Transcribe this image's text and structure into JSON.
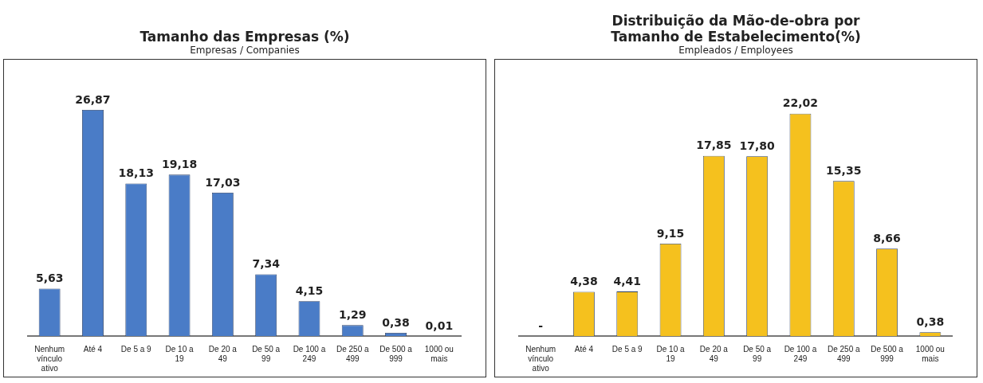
{
  "chart_data": [
    {
      "type": "bar",
      "title": "Tamanho das Empresas (%)",
      "subtitle": "Empresas / Companies",
      "categories": [
        "Nenhum vínculo ativo",
        "Até 4",
        "De 5 a 9",
        "De 10 a 19",
        "De 20 a 49",
        "De 50 a 99",
        "De 100 a 249",
        "De 250 a 499",
        "De 500 a 999",
        "1000 ou mais"
      ],
      "values": [
        5.63,
        26.87,
        18.13,
        19.18,
        17.03,
        7.34,
        4.15,
        1.29,
        0.38,
        0.01
      ],
      "value_labels": [
        "5,63",
        "26,87",
        "18,13",
        "19,18",
        "17,03",
        "7,34",
        "4,15",
        "1,29",
        "0,38",
        "0,01"
      ],
      "color": "#4a7cc7",
      "grid": false,
      "legend": false
    },
    {
      "type": "bar",
      "title": "Distribuição da Mão-de-obra por Tamanho de Estabelecimento(%)",
      "subtitle": "Empleados / Employees",
      "categories": [
        "Nenhum vínculo ativo",
        "Até 4",
        "De 5 a 9",
        "De 10 a 19",
        "De 20 a 49",
        "De 50 a 99",
        "De 100 a 249",
        "De 250 a 499",
        "De 500 a 999",
        "1000 ou mais"
      ],
      "values": [
        0,
        4.38,
        4.41,
        9.15,
        17.85,
        17.8,
        22.02,
        15.35,
        8.66,
        0.38
      ],
      "value_labels": [
        "-",
        "4,38",
        "4,41",
        "9,15",
        "17,85",
        "17,80",
        "22,02",
        "15,35",
        "8,66",
        "0,38"
      ],
      "color": "#f5c11e",
      "grid": false,
      "legend": false
    }
  ]
}
